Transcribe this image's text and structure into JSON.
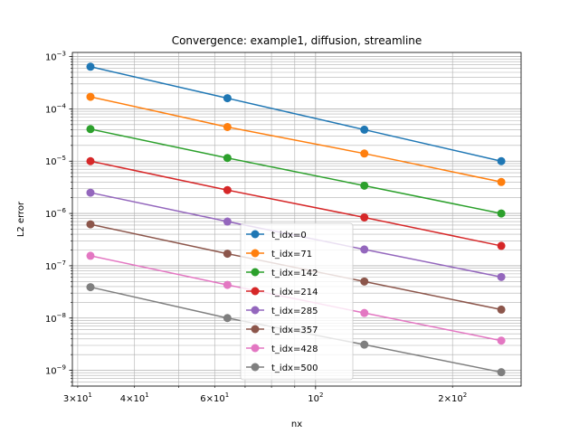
{
  "chart_data": {
    "type": "line",
    "title": "Convergence: example1, diffusion, streamline",
    "xlabel": "nx",
    "ylabel": "L2 error",
    "xscale": "log",
    "yscale": "log",
    "xlim": [
      29.2,
      283
    ],
    "ylim": [
      5e-10,
      0.0012
    ],
    "grid": "both-major-minor",
    "legend_loc": "lower-center",
    "x_ticks": [
      {
        "base": "3",
        "sup": "1",
        "value": 30
      },
      {
        "base": "4",
        "sup": "1",
        "value": 40
      },
      {
        "base": "6",
        "sup": "1",
        "value": 60
      },
      {
        "base": "",
        "sup": "2",
        "value": 100
      },
      {
        "base": "2",
        "sup": "2",
        "value": 200
      }
    ],
    "y_ticks": [
      {
        "sup": "−3",
        "value": 0.001
      },
      {
        "sup": "−4",
        "value": 0.0001
      },
      {
        "sup": "−5",
        "value": 1e-05
      },
      {
        "sup": "−6",
        "value": 1e-06
      },
      {
        "sup": "−7",
        "value": 1e-07
      },
      {
        "sup": "−8",
        "value": 1e-08
      },
      {
        "sup": "−9",
        "value": 1e-09
      }
    ],
    "x": [
      32,
      64,
      128,
      256
    ],
    "series": [
      {
        "name": "t_idx=0",
        "color": "#1f77b4",
        "values": [
          0.00064,
          0.00016,
          4e-05,
          1e-05
        ]
      },
      {
        "name": "t_idx=71",
        "color": "#ff7f0e",
        "values": [
          0.00017,
          4.5e-05,
          1.4e-05,
          4e-06
        ]
      },
      {
        "name": "t_idx=142",
        "color": "#2ca02c",
        "values": [
          4.1e-05,
          1.15e-05,
          3.4e-06,
          1e-06
        ]
      },
      {
        "name": "t_idx=214",
        "color": "#d62728",
        "values": [
          1e-05,
          2.8e-06,
          8.4e-07,
          2.4e-07
        ]
      },
      {
        "name": "t_idx=285",
        "color": "#9467bd",
        "values": [
          2.5e-06,
          7e-07,
          2.05e-07,
          6.1e-08
        ]
      },
      {
        "name": "t_idx=357",
        "color": "#8c564b",
        "values": [
          6.2e-07,
          1.7e-07,
          5e-08,
          1.45e-08
        ]
      },
      {
        "name": "t_idx=428",
        "color": "#e377c2",
        "values": [
          1.55e-07,
          4.3e-08,
          1.25e-08,
          3.7e-09
        ]
      },
      {
        "name": "t_idx=500",
        "color": "#7f7f7f",
        "values": [
          3.9e-08,
          1e-08,
          3.1e-09,
          9.2e-10
        ]
      }
    ]
  }
}
